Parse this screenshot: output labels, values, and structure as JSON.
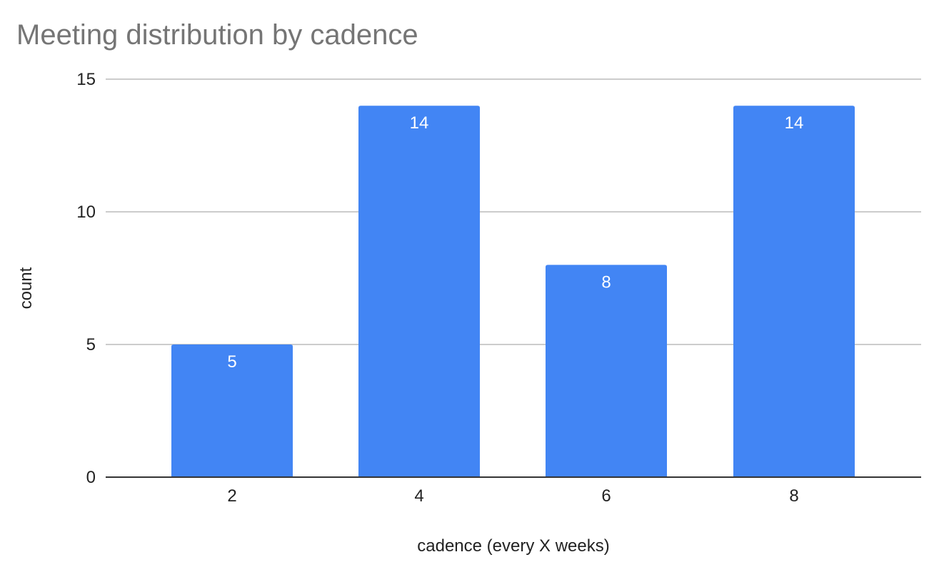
{
  "chart_data": {
    "type": "bar",
    "title": "Meeting distribution by cadence",
    "xlabel": "cadence (every X weeks)",
    "ylabel": "count",
    "categories": [
      "2",
      "4",
      "6",
      "8"
    ],
    "values": [
      5,
      14,
      8,
      14
    ],
    "ylim": [
      0,
      15
    ],
    "yticks": [
      0,
      5,
      10,
      15
    ],
    "grid": true,
    "data_labels": true,
    "legend": "none",
    "bar_color": "#4285f4"
  }
}
